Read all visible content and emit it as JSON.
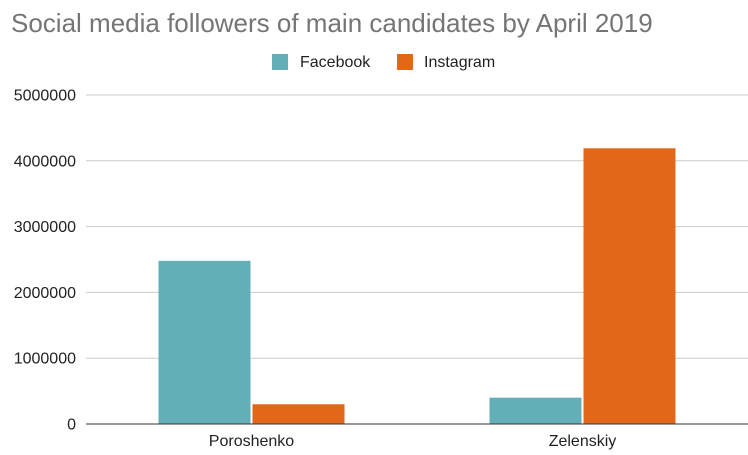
{
  "chart_data": {
    "type": "bar",
    "title": "Social media followers of main candidates by April 2019",
    "categories": [
      "Poroshenko",
      "Zelenskiy"
    ],
    "series": [
      {
        "name": "Facebook",
        "values": [
          2480000,
          400000
        ],
        "color": "#62afb7"
      },
      {
        "name": "Instagram",
        "values": [
          300000,
          4190000
        ],
        "color": "#e06818"
      }
    ],
    "ylim": [
      0,
      5000000
    ],
    "yticks": [
      "0",
      "1000000",
      "2000000",
      "3000000",
      "4000000",
      "5000000"
    ],
    "grid": true,
    "legend_position": "top-center"
  },
  "colors": {
    "title": "#757575",
    "axis_text": "#222222",
    "gridline": "#cccccc",
    "baseline": "#333333"
  }
}
